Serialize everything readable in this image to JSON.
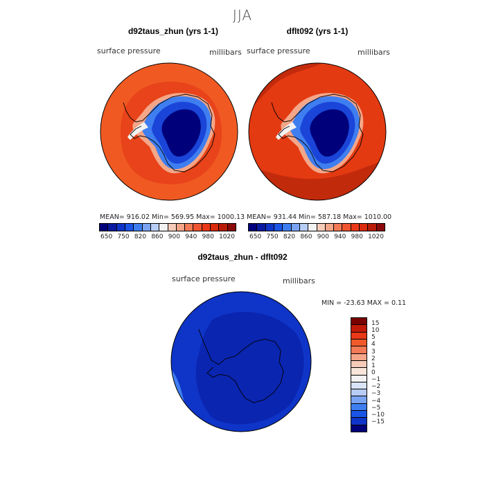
{
  "figure": {
    "season": "JJA"
  },
  "panels": [
    {
      "title": "d92taus_zhun (yrs 1-1)",
      "variable": "surface pressure",
      "units": "millibars",
      "stats": "MEAN= 916.02   Min= 569.95   Max= 1000.13"
    },
    {
      "title": "dflt092 (yrs 1-1)",
      "variable": "surface pressure",
      "units": "millibars",
      "stats": "MEAN= 931.44   Min= 587.18   Max= 1010.00"
    }
  ],
  "diff_panel": {
    "title": "d92taus_zhun - dflt092",
    "variable": "surface pressure",
    "units": "millibars",
    "stats": "MIN = -23.63  MAX =    0.11"
  },
  "colorbar": {
    "colors": [
      "#00007a",
      "#0a1aa0",
      "#0f35c8",
      "#1a55e6",
      "#3f7ef0",
      "#7aa4f2",
      "#b8cdf5",
      "#f2f2f2",
      "#f6cbb8",
      "#f4a688",
      "#f27a55",
      "#ee5530",
      "#e83818",
      "#d92a0e",
      "#b81c08",
      "#8a0a0a"
    ],
    "ticks": [
      "650",
      "750",
      "820",
      "860",
      "900",
      "940",
      "980",
      "1020"
    ]
  },
  "diff_colorbar": {
    "colors": [
      "#7a0000",
      "#c21a08",
      "#e83818",
      "#f05a2a",
      "#f27a55",
      "#f4a688",
      "#f6cbb8",
      "#f8e4d8",
      "#f2f2f2",
      "#d8e4f8",
      "#b8cdf5",
      "#7aa4f2",
      "#3f7ef0",
      "#1a55e6",
      "#0f35c8",
      "#00007a"
    ],
    "ticks": [
      "15",
      "10",
      "5",
      "4",
      "3",
      "2",
      "1",
      "0",
      "−1",
      "−2",
      "−3",
      "−4",
      "−5",
      "−10",
      "−15"
    ]
  },
  "map_colors": {
    "ocean_p1": "#f05a22",
    "ocean_p1_inner": "#e8431a",
    "ocean_p2": "#e33a12",
    "ocean_p2_outer": "#c22a0c",
    "coast_ring": "#f4a688",
    "ice_edge": "#3f7ef0",
    "ice_mid": "#1a45d8",
    "ice_core": "#00007a",
    "diff_main": "#0f35c8",
    "diff_dark": "#0a25b0",
    "diff_edge": "#3f7ef0"
  }
}
